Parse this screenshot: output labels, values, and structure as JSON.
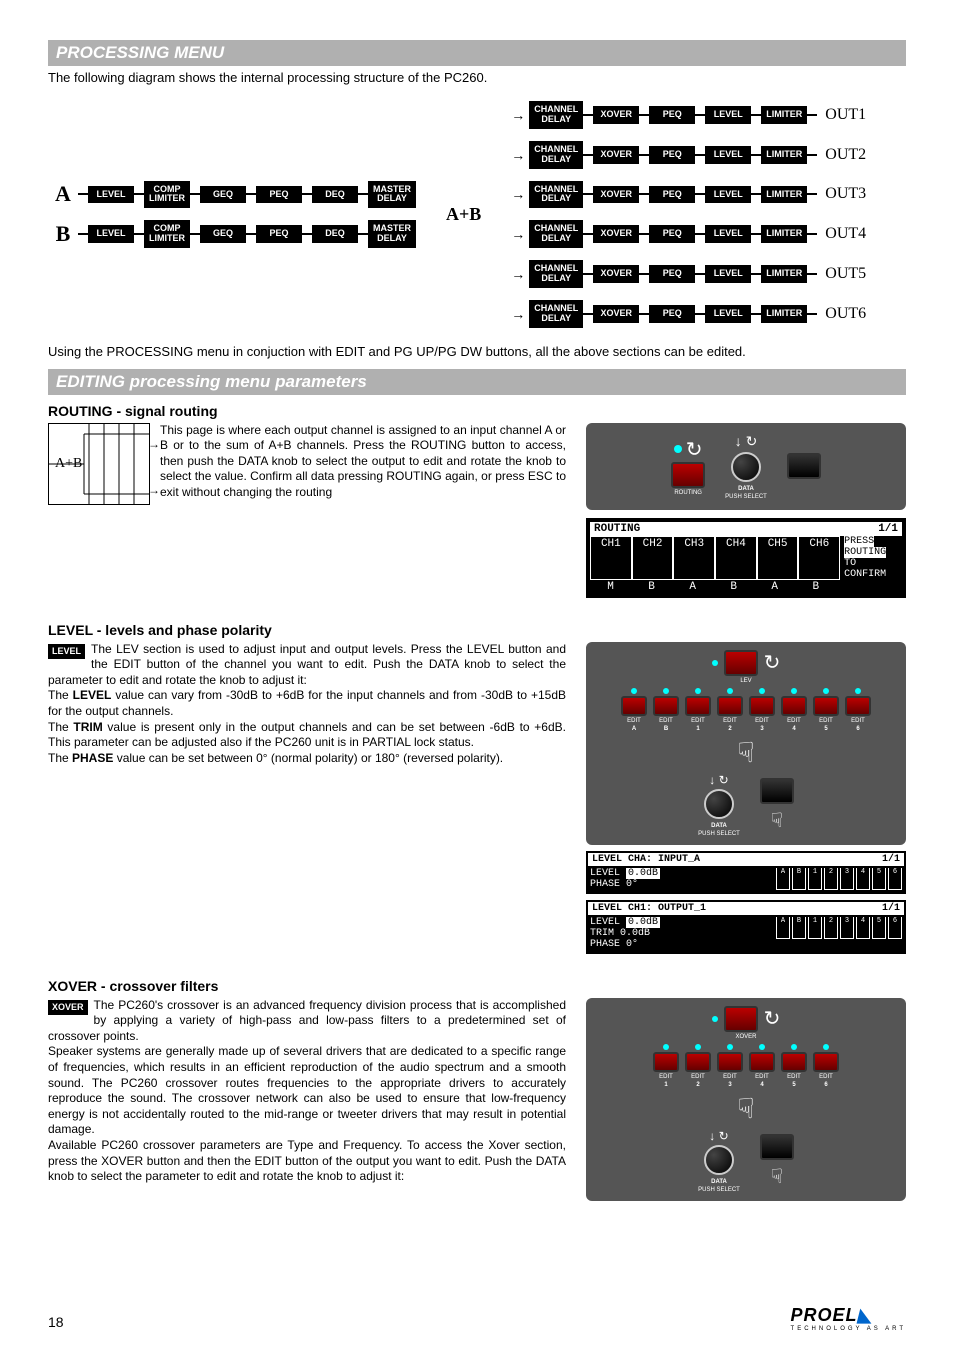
{
  "page_number": "18",
  "logo": {
    "name": "PROEL",
    "tagline": "TECHNOLOGY AS ART"
  },
  "section1": {
    "title": "PROCESSING MENU",
    "intro": "The following diagram shows the internal processing structure of the PC260.",
    "input_labels": [
      "A",
      "B"
    ],
    "input_chain": [
      "LEVEL",
      "COMP\nLIMITER",
      "GEQ",
      "PEQ",
      "DEQ",
      "MASTER\nDELAY"
    ],
    "sum_label": "A+B",
    "output_chain": [
      "CHANNEL\nDELAY",
      "XOVER",
      "PEQ",
      "LEVEL",
      "LIMITER"
    ],
    "outputs": [
      "OUT1",
      "OUT2",
      "OUT3",
      "OUT4",
      "OUT5",
      "OUT6"
    ],
    "footer": "Using the PROCESSING menu in conjuction with EDIT and PG UP/PG DW buttons, all the above sections can be edited."
  },
  "section2": {
    "title": "EDITING processing menu parameters",
    "routing": {
      "heading": "ROUTING - signal routing",
      "chart_label": "A+B",
      "text": "This page is where each output channel is assigned to an input channel A or B or to the sum of A+B channels. Press the ROUTING button to access, then push the DATA knob to select the output to edit and rotate the knob to select the value. Confirm all data pressing ROUTING again, or press ESC to exit without changing the routing",
      "panel": {
        "routing_label": "ROUTING",
        "data_label": "DATA",
        "data_sub": "PUSH SELECT"
      },
      "lcd": {
        "title": "ROUTING",
        "page": "1/1",
        "cols": [
          "CH1",
          "CH2",
          "CH3",
          "CH4",
          "CH5",
          "CH6"
        ],
        "msg1": "PRESS ROUTING",
        "msg2": "TO CONFIRM",
        "vals": [
          "M",
          "B",
          "A",
          "B",
          "A",
          "B"
        ]
      }
    },
    "level": {
      "heading": "LEVEL - levels and phase polarity",
      "tag": "LEVEL",
      "text1": "The LEV section is used to adjust input and output levels. Press the LEVEL button and the EDIT button of the channel you want to edit. Push the DATA knob to select the parameter to edit and rotate the knob to adjust it:",
      "text2_pre": "The ",
      "text2_b": "LEVEL",
      "text2_post": " value can vary from -30dB to +6dB for the input channels and from -30dB to +15dB for the output channels.",
      "text3_pre": "The ",
      "text3_b": "TRIM",
      "text3_post": " value is present only in the output channels and can be set between -6dB to +6dB. This parameter can be adjusted also if the PC260 unit is in PARTIAL lock status.",
      "text4_pre": "The ",
      "text4_b": "PHASE",
      "text4_post": " value can be set between 0° (normal polarity) or 180° (reversed polarity).",
      "panel": {
        "lev_label": "LEV",
        "edit_label": "EDIT",
        "data_label": "DATA",
        "data_sub": "PUSH SELECT",
        "channels": [
          "A",
          "B",
          "1",
          "2",
          "3",
          "4",
          "5",
          "6"
        ]
      },
      "lcd_in": {
        "title": "LEVEL CHA: INPUT_A",
        "page": "1/1",
        "line1": "LEVEL",
        "val1": "0.0dB",
        "line2": "PHASE 0°",
        "meters": [
          "A",
          "B",
          "1",
          "2",
          "3",
          "4",
          "5",
          "6"
        ]
      },
      "lcd_out": {
        "title": "LEVEL CH1: OUTPUT_1",
        "page": "1/1",
        "line1": "LEVEL",
        "val1": "0.0dB",
        "line2": "TRIM  0.0dB",
        "line3": "PHASE 0°",
        "meters": [
          "A",
          "B",
          "1",
          "2",
          "3",
          "4",
          "5",
          "6"
        ]
      }
    },
    "xover": {
      "heading": "XOVER - crossover filters",
      "tag": "XOVER",
      "text1": "The PC260's crossover is an advanced frequency division process that is accomplished by applying a variety of high-pass and low-pass filters to a predetermined set of crossover points.",
      "text2": "Speaker systems are generally made up of several drivers that are dedicated to a specific range of frequencies, which results in an efficient reproduction of the audio spectrum and a smooth sound. The PC260 crossover routes frequencies to the appropriate drivers to accurately reproduce the sound. The crossover network can also be used to ensure that low-frequency energy is not accidentally routed to the mid-range or tweeter drivers that may result in potential damage.",
      "text3": "Available PC260 crossover parameters are Type and Frequency. To access the Xover section, press the XOVER button and then the EDIT button of the output you want to edit. Push the DATA knob to select the parameter to edit and rotate the knob to adjust it:",
      "panel": {
        "xover_label": "XOVER",
        "edit_label": "EDIT",
        "data_label": "DATA",
        "data_sub": "PUSH SELECT",
        "channels": [
          "1",
          "2",
          "3",
          "4",
          "5",
          "6"
        ]
      }
    }
  }
}
